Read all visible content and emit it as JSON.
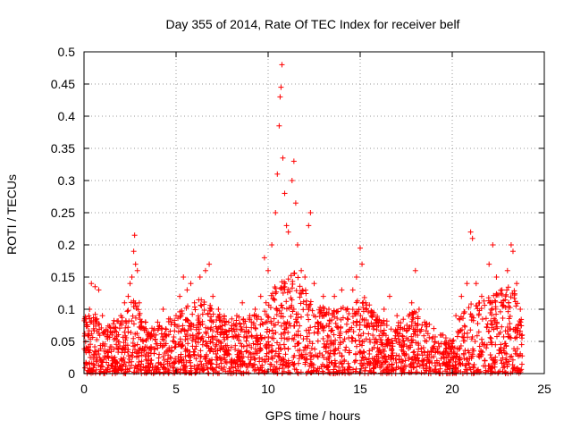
{
  "chart_data": {
    "type": "scatter",
    "title": "Day 355 of 2014, Rate Of TEC Index for receiver belf",
    "xlabel": "GPS time / hours",
    "ylabel": "ROTI / TECUs",
    "xlim": [
      0,
      25
    ],
    "ylim": [
      0,
      0.5
    ],
    "xticks": [
      0,
      5,
      10,
      15,
      20,
      25
    ],
    "yticks": [
      0,
      0.05,
      0.1,
      0.15,
      0.2,
      0.25,
      0.3,
      0.35,
      0.4,
      0.45,
      0.5
    ],
    "xtick_labels": [
      "0",
      "5",
      "10",
      "15",
      "20",
      "25"
    ],
    "ytick_labels": [
      "0",
      "0.05",
      "0.1",
      "0.15",
      "0.2",
      "0.25",
      "0.3",
      "0.35",
      "0.4",
      "0.45",
      "0.5"
    ],
    "grid": true,
    "marker": "plus",
    "color": "#ff0000",
    "series": [
      {
        "name": "ROTI",
        "points": [
          [
            0.1,
            0.08
          ],
          [
            0.2,
            0.06
          ],
          [
            0.3,
            0.1
          ],
          [
            0.4,
            0.14
          ],
          [
            0.6,
            0.135
          ],
          [
            0.8,
            0.13
          ],
          [
            1.0,
            0.09
          ],
          [
            1.3,
            0.06
          ],
          [
            1.6,
            0.07
          ],
          [
            1.8,
            0.04
          ],
          [
            2.0,
            0.09
          ],
          [
            2.2,
            0.11
          ],
          [
            2.4,
            0.12
          ],
          [
            2.5,
            0.14
          ],
          [
            2.6,
            0.15
          ],
          [
            2.7,
            0.19
          ],
          [
            2.75,
            0.215
          ],
          [
            2.8,
            0.17
          ],
          [
            2.9,
            0.16
          ],
          [
            3.0,
            0.11
          ],
          [
            3.3,
            0.07
          ],
          [
            3.6,
            0.06
          ],
          [
            4.0,
            0.08
          ],
          [
            4.3,
            0.1
          ],
          [
            4.6,
            0.085
          ],
          [
            5.0,
            0.09
          ],
          [
            5.2,
            0.12
          ],
          [
            5.4,
            0.15
          ],
          [
            5.6,
            0.13
          ],
          [
            5.8,
            0.14
          ],
          [
            6.0,
            0.11
          ],
          [
            6.3,
            0.15
          ],
          [
            6.6,
            0.16
          ],
          [
            6.8,
            0.17
          ],
          [
            7.0,
            0.12
          ],
          [
            7.3,
            0.1
          ],
          [
            7.6,
            0.085
          ],
          [
            8.0,
            0.07
          ],
          [
            8.3,
            0.09
          ],
          [
            8.6,
            0.11
          ],
          [
            9.0,
            0.09
          ],
          [
            9.3,
            0.1
          ],
          [
            9.6,
            0.12
          ],
          [
            9.8,
            0.18
          ],
          [
            10.0,
            0.16
          ],
          [
            10.2,
            0.2
          ],
          [
            10.4,
            0.25
          ],
          [
            10.5,
            0.31
          ],
          [
            10.6,
            0.385
          ],
          [
            10.65,
            0.43
          ],
          [
            10.7,
            0.445
          ],
          [
            10.75,
            0.48
          ],
          [
            10.8,
            0.335
          ],
          [
            10.9,
            0.28
          ],
          [
            11.0,
            0.23
          ],
          [
            11.1,
            0.22
          ],
          [
            11.3,
            0.3
          ],
          [
            11.4,
            0.33
          ],
          [
            11.5,
            0.265
          ],
          [
            11.6,
            0.2
          ],
          [
            11.8,
            0.16
          ],
          [
            12.0,
            0.15
          ],
          [
            12.2,
            0.23
          ],
          [
            12.3,
            0.25
          ],
          [
            12.5,
            0.14
          ],
          [
            13.0,
            0.12
          ],
          [
            13.3,
            0.1
          ],
          [
            13.6,
            0.12
          ],
          [
            14.0,
            0.13
          ],
          [
            14.3,
            0.1
          ],
          [
            14.6,
            0.13
          ],
          [
            14.8,
            0.15
          ],
          [
            15.0,
            0.195
          ],
          [
            15.1,
            0.17
          ],
          [
            15.3,
            0.11
          ],
          [
            15.6,
            0.09
          ],
          [
            16.0,
            0.08
          ],
          [
            16.3,
            0.1
          ],
          [
            16.6,
            0.12
          ],
          [
            17.0,
            0.09
          ],
          [
            17.4,
            0.07
          ],
          [
            17.8,
            0.11
          ],
          [
            18.0,
            0.16
          ],
          [
            18.2,
            0.1
          ],
          [
            18.5,
            0.08
          ],
          [
            19.0,
            0.07
          ],
          [
            19.5,
            0.06
          ],
          [
            20.0,
            0.05
          ],
          [
            20.2,
            0.09
          ],
          [
            20.5,
            0.12
          ],
          [
            20.8,
            0.14
          ],
          [
            21.0,
            0.22
          ],
          [
            21.1,
            0.21
          ],
          [
            21.3,
            0.14
          ],
          [
            21.6,
            0.12
          ],
          [
            22.0,
            0.17
          ],
          [
            22.2,
            0.2
          ],
          [
            22.4,
            0.15
          ],
          [
            22.7,
            0.13
          ],
          [
            23.0,
            0.16
          ],
          [
            23.2,
            0.2
          ],
          [
            23.3,
            0.19
          ],
          [
            23.5,
            0.14
          ],
          [
            23.7,
            0.1
          ]
        ]
      }
    ]
  }
}
